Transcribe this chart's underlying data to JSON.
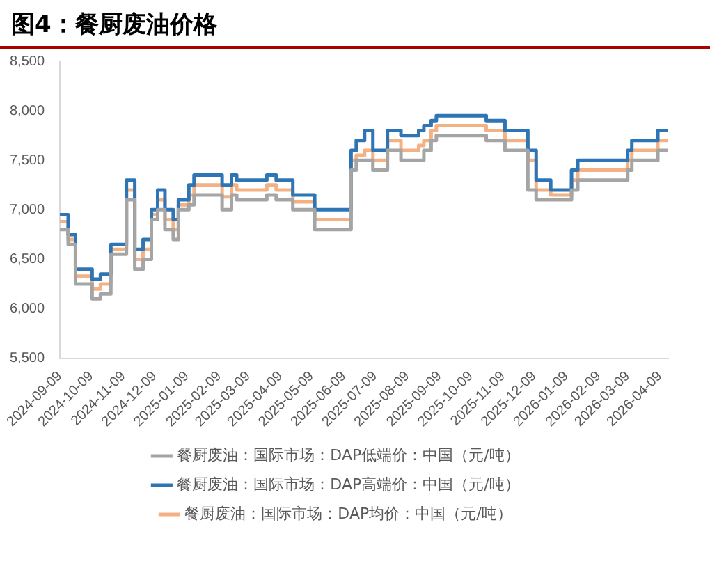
{
  "chart_data": {
    "type": "step",
    "title": "图4：餐厨废油价格",
    "x": [
      "2024-09-09",
      "2024-09-17",
      "2024-09-24",
      "2024-10-10",
      "2024-10-18",
      "2024-10-28",
      "2024-11-12",
      "2024-11-20",
      "2024-11-28",
      "2024-12-06",
      "2024-12-12",
      "2024-12-19",
      "2024-12-27",
      "2025-01-01",
      "2025-01-11",
      "2025-01-16",
      "2025-02-12",
      "2025-02-21",
      "2025-02-26",
      "2025-03-27",
      "2025-04-05",
      "2025-04-21",
      "2025-05-12",
      "2025-06-16",
      "2025-06-21",
      "2025-06-29",
      "2025-07-07",
      "2025-07-21",
      "2025-08-03",
      "2025-08-20",
      "2025-08-25",
      "2025-09-01",
      "2025-09-06",
      "2025-10-24",
      "2025-11-11",
      "2025-12-03",
      "2025-12-11",
      "2025-12-25",
      "2026-01-14",
      "2026-01-20",
      "2026-03-09",
      "2026-03-13",
      "2026-04-07",
      "2026-04-17"
    ],
    "series": [
      {
        "name": "餐厨废油：国际市场：DAP低端价：中国（元/吨）",
        "color": "#a5a5a5",
        "values": [
          6800,
          6650,
          6250,
          6100,
          6150,
          6550,
          7100,
          6400,
          6500,
          6900,
          7000,
          6800,
          6700,
          7000,
          7050,
          7150,
          7000,
          7150,
          7100,
          7150,
          7100,
          7000,
          6800,
          7400,
          7500,
          7500,
          7400,
          7600,
          7500,
          7500,
          7600,
          7700,
          7750,
          7700,
          7600,
          7200,
          7100,
          7100,
          7200,
          7300,
          7400,
          7500,
          7600,
          7600
        ]
      },
      {
        "name": "餐厨废油：国际市场：DAP高端价：中国（元/吨）",
        "color": "#2e75b6",
        "values": [
          6950,
          6750,
          6400,
          6300,
          6350,
          6650,
          7300,
          6600,
          6700,
          7000,
          7200,
          7000,
          6900,
          7100,
          7250,
          7350,
          7250,
          7350,
          7300,
          7350,
          7300,
          7150,
          7000,
          7600,
          7700,
          7800,
          7600,
          7800,
          7750,
          7800,
          7850,
          7900,
          7950,
          7900,
          7800,
          7600,
          7300,
          7200,
          7400,
          7500,
          7600,
          7700,
          7800,
          7800
        ]
      },
      {
        "name": "餐厨废油：国际市场：DAP均价：中国（元/吨）",
        "color": "#f4b183",
        "values": [
          6880,
          6700,
          6330,
          6200,
          6250,
          6600,
          7200,
          6500,
          6600,
          6950,
          7100,
          6900,
          6800,
          7050,
          7150,
          7250,
          7130,
          7250,
          7200,
          7250,
          7200,
          7080,
          6900,
          7500,
          7550,
          7600,
          7500,
          7700,
          7600,
          7650,
          7700,
          7800,
          7850,
          7800,
          7700,
          7500,
          7200,
          7150,
          7300,
          7400,
          7500,
          7600,
          7700,
          7700
        ]
      }
    ],
    "xlim": [
      "2024-09-09",
      "2026-04-17"
    ],
    "xticks": [
      "2024-09-09",
      "2024-10-09",
      "2024-11-09",
      "2024-12-09",
      "2025-01-09",
      "2025-02-09",
      "2025-03-09",
      "2025-04-09",
      "2025-05-09",
      "2025-06-09",
      "2025-07-09",
      "2025-08-09",
      "2025-09-09",
      "2025-10-09",
      "2025-11-09",
      "2025-12-09",
      "2026-01-09",
      "2026-02-09",
      "2026-03-09",
      "2026-04-09"
    ],
    "ylim": [
      5500,
      8500
    ],
    "yticks": [
      {
        "value": 5500,
        "label": "5,500"
      },
      {
        "value": 6000,
        "label": "6,000"
      },
      {
        "value": 6500,
        "label": "6,500"
      },
      {
        "value": 7000,
        "label": "7,000"
      },
      {
        "value": 7500,
        "label": "7,500"
      },
      {
        "value": 8000,
        "label": "8,000"
      },
      {
        "value": 8500,
        "label": "8,500"
      }
    ],
    "grid": false,
    "legend": "bottom"
  }
}
